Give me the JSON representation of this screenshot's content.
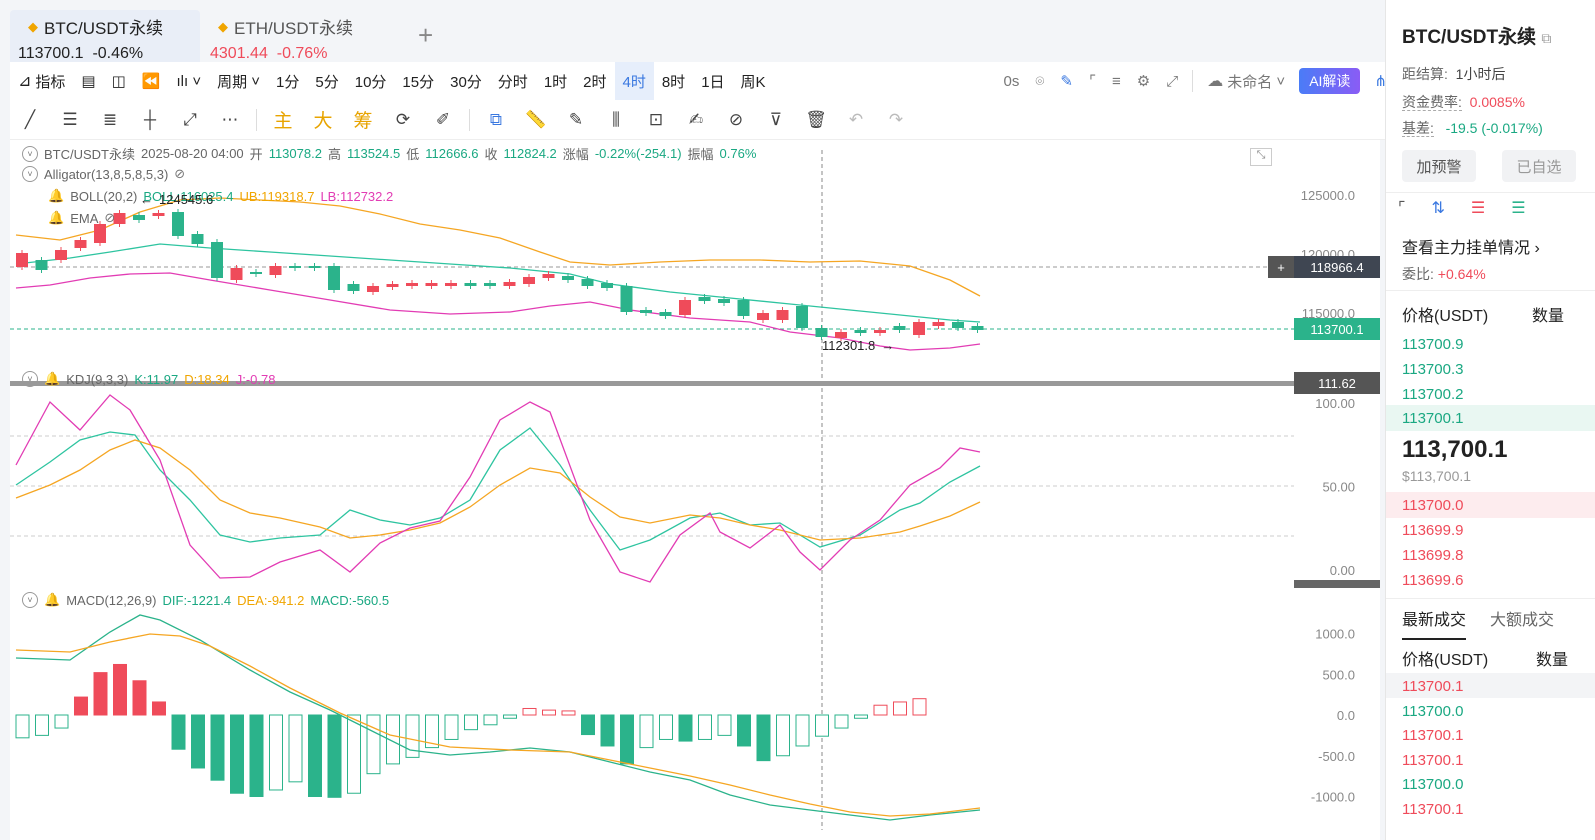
{
  "tabs": [
    {
      "symbol": "BTC/USDT永续",
      "price": "113700.1",
      "change": "-0.46%",
      "active": true
    },
    {
      "symbol": "ETH/USDT永续",
      "price": "4301.44",
      "change": "-0.76%",
      "active": false
    }
  ],
  "toolbar": {
    "indicators": "指标",
    "period": "周期",
    "intervals": [
      "1分",
      "5分",
      "10分",
      "15分",
      "30分",
      "分时",
      "1时",
      "2时",
      "4时",
      "8时",
      "1日",
      "周K"
    ],
    "selected_interval": "4时",
    "countdown": "0s",
    "layout_name": "未命名",
    "ai_label": "AI解读"
  },
  "draw_tools": {
    "main": "主",
    "big": "大",
    "chips": "筹"
  },
  "chart": {
    "symbol_line": {
      "symbol": "BTC/USDT永续",
      "time": "2025-08-20 04:00",
      "open_label": "开",
      "open": "113078.2",
      "high_label": "高",
      "high": "113524.5",
      "low_label": "低",
      "low": "112666.6",
      "close_label": "收",
      "close": "112824.2",
      "chg_label": "涨幅",
      "chg": "-0.22%(-254.1)",
      "amp_label": "振幅",
      "amp": "0.76%"
    },
    "alligator": "Alligator(13,8,5,8,5,3)",
    "boll": {
      "label": "BOLL(20,2)",
      "mid": "BOLL:116025.4",
      "ub": "UB:119318.7",
      "lb": "LB:112732.2"
    },
    "ema": "EMA",
    "high_marker": "124545.6",
    "low_marker": "112301.8",
    "main_axis": [
      "125000.0",
      "120000.0",
      "115000.0"
    ],
    "crosshair_price": "118966.4",
    "last_price": "113700.1",
    "kdj": {
      "label": "KDJ(9,3,3)",
      "k": "K:11.97",
      "d": "D:18.34",
      "j": "J:-0.78",
      "axis": [
        "100.00",
        "50.00",
        "0.00"
      ],
      "cursor": "111.62"
    },
    "macd": {
      "label": "MACD(12,26,9)",
      "dif": "DIF:-1221.4",
      "dea": "DEA:-941.2",
      "macd": "MACD:-560.5",
      "axis": [
        "1000.0",
        "500.0",
        "0.0",
        "-500.0",
        "-1000.0"
      ]
    }
  },
  "right_panel": {
    "title": "BTC/USDT永续",
    "settle_label": "距结算:",
    "settle_value": "1小时后",
    "funding_label": "资金费率:",
    "funding_value": "0.0085%",
    "basis_label": "基差:",
    "basis_value": "-19.5 (-0.017%)",
    "alert_btn": "加预警",
    "fav_btn": "已自选",
    "orders_link": "查看主力挂单情况",
    "ratio_label": "委比:",
    "ratio_value": "+0.64%",
    "ob_price_header": "价格(USDT)",
    "ob_qty_header": "数量",
    "asks": [
      "113700.9",
      "113700.3",
      "113700.2",
      "113700.1"
    ],
    "last": "113,700.1",
    "last_usd": "$113,700.1",
    "bids": [
      "113700.0",
      "113699.9",
      "113699.8",
      "113699.6"
    ],
    "trades_tab1": "最新成交",
    "trades_tab2": "大额成交",
    "trades_price_header": "价格(USDT)",
    "trades_qty_header": "数量",
    "trades": [
      {
        "price": "113700.1",
        "side": "sell"
      },
      {
        "price": "113700.0",
        "side": "buy"
      },
      {
        "price": "113700.1",
        "side": "sell"
      },
      {
        "price": "113700.1",
        "side": "sell"
      },
      {
        "price": "113700.0",
        "side": "buy"
      },
      {
        "price": "113700.1",
        "side": "sell"
      }
    ]
  },
  "colors": {
    "up": "#2bb38b",
    "down": "#ef4b5a",
    "boll_ub": "#f5a623",
    "boll_mid": "#2ec4a0",
    "boll_lb": "#e23cb4",
    "accent": "#3a78e0"
  }
}
